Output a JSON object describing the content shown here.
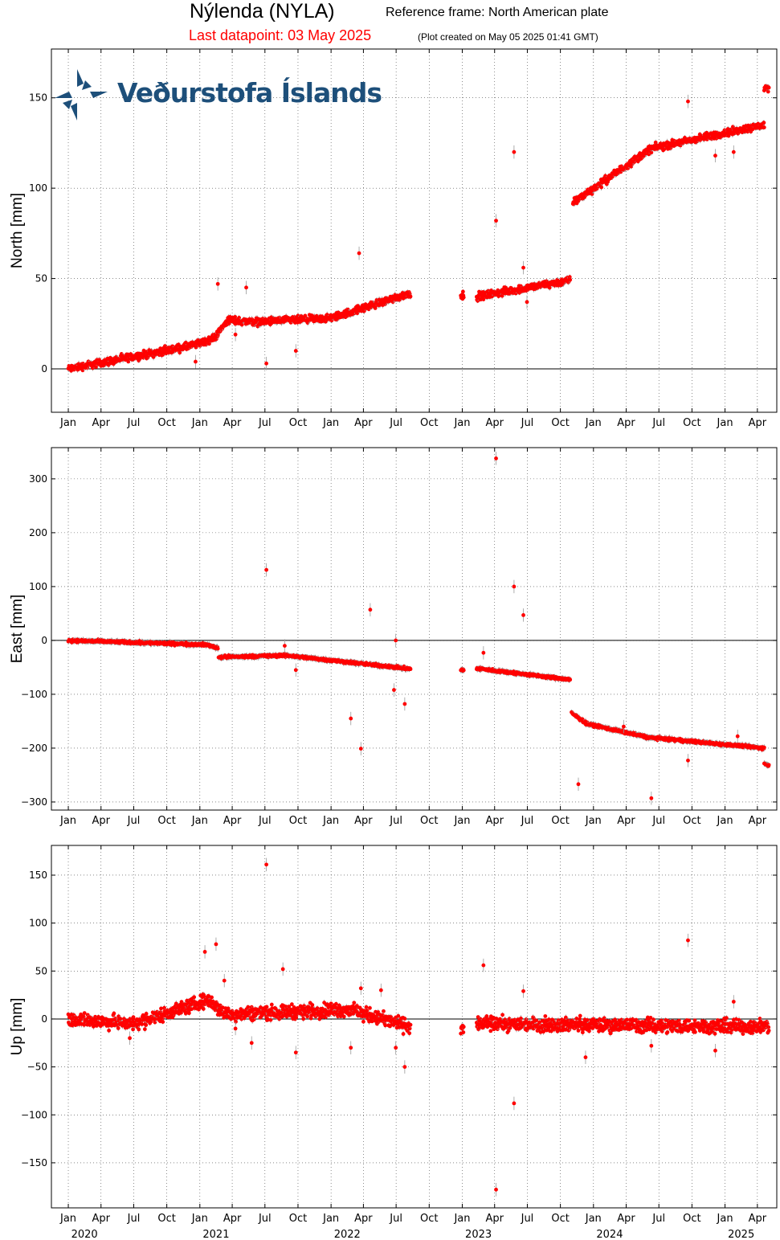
{
  "header": {
    "station": "Nýlenda (NYLA)",
    "reference_frame": "Reference frame: North American plate",
    "last_datapoint": "Last datapoint: 03 May 2025",
    "plot_created": "(Plot created on May 05 2025 01:41 GMT)"
  },
  "logo": {
    "text": "Veðurstofa Íslands"
  },
  "colors": {
    "data": "#ff0000",
    "error_bar": "#999999",
    "zero_line": "#000000",
    "grid": "#444444"
  },
  "chart_data": [
    {
      "type": "scatter",
      "ylabel": "North [mm]",
      "ylim": [
        -24,
        177
      ],
      "yticks": [
        0,
        50,
        100,
        150
      ],
      "grid": true,
      "zero_line": true,
      "segments": [
        {
          "x": [
            "2020-01-01",
            "2020-12-15"
          ],
          "y": [
            0,
            13
          ]
        },
        {
          "x": [
            "2020-12-15",
            "2021-02-10"
          ],
          "y": [
            13,
            17
          ]
        },
        {
          "x": [
            "2021-02-10",
            "2021-03-20"
          ],
          "y": [
            17,
            27
          ]
        },
        {
          "x": [
            "2021-03-20",
            "2021-06-10"
          ],
          "y": [
            27,
            26
          ]
        },
        {
          "x": [
            "2021-06-10",
            "2021-12-31"
          ],
          "y": [
            26,
            28
          ]
        },
        {
          "x": [
            "2021-12-31",
            "2022-08-10"
          ],
          "y": [
            28,
            42
          ]
        },
        {
          "x": [
            "2022-12-28",
            "2023-01-05"
          ],
          "y": [
            40,
            41
          ]
        },
        {
          "x": [
            "2023-02-10",
            "2023-10-28"
          ],
          "y": [
            40,
            49
          ]
        },
        {
          "x": [
            "2023-11-05",
            "2024-06-10"
          ],
          "y": [
            92,
            122
          ]
        },
        {
          "x": [
            "2024-06-10",
            "2025-04-20"
          ],
          "y": [
            122,
            135
          ]
        },
        {
          "x": [
            "2025-04-20",
            "2025-05-03"
          ],
          "y": [
            154,
            155
          ]
        }
      ],
      "outliers": [
        {
          "x": "2020-12-20",
          "y": 4
        },
        {
          "x": "2021-02-20",
          "y": 47
        },
        {
          "x": "2021-04-10",
          "y": 19
        },
        {
          "x": "2021-05-10",
          "y": 45
        },
        {
          "x": "2021-07-05",
          "y": 3
        },
        {
          "x": "2021-09-25",
          "y": 10
        },
        {
          "x": "2022-03-20",
          "y": 64
        },
        {
          "x": "2023-04-05",
          "y": 82
        },
        {
          "x": "2023-05-25",
          "y": 120
        },
        {
          "x": "2023-06-20",
          "y": 56
        },
        {
          "x": "2023-06-30",
          "y": 37
        },
        {
          "x": "2024-09-20",
          "y": 148
        },
        {
          "x": "2024-12-05",
          "y": 118
        },
        {
          "x": "2025-01-25",
          "y": 120
        }
      ]
    },
    {
      "type": "scatter",
      "ylabel": "East [mm]",
      "ylim": [
        -315,
        358
      ],
      "yticks": [
        -300,
        -200,
        -100,
        0,
        100,
        200,
        300
      ],
      "grid": true,
      "zero_line": true,
      "segments": [
        {
          "x": [
            "2020-01-01",
            "2021-01-20"
          ],
          "y": [
            0,
            -8
          ]
        },
        {
          "x": [
            "2021-01-20",
            "2021-02-20"
          ],
          "y": [
            -8,
            -14
          ]
        },
        {
          "x": [
            "2021-02-22",
            "2021-09-01"
          ],
          "y": [
            -31,
            -28
          ]
        },
        {
          "x": [
            "2021-09-01",
            "2022-08-10"
          ],
          "y": [
            -28,
            -53
          ]
        },
        {
          "x": [
            "2022-12-28",
            "2023-01-05"
          ],
          "y": [
            -55,
            -55
          ]
        },
        {
          "x": [
            "2023-02-10",
            "2023-10-28"
          ],
          "y": [
            -52,
            -73
          ]
        },
        {
          "x": [
            "2023-11-01",
            "2023-12-15"
          ],
          "y": [
            -135,
            -155
          ]
        },
        {
          "x": [
            "2023-12-15",
            "2024-06-01"
          ],
          "y": [
            -155,
            -180
          ]
        },
        {
          "x": [
            "2024-06-01",
            "2025-04-20"
          ],
          "y": [
            -180,
            -200
          ]
        },
        {
          "x": [
            "2025-04-20",
            "2025-05-03"
          ],
          "y": [
            -228,
            -232
          ]
        }
      ],
      "outliers": [
        {
          "x": "2021-07-05",
          "y": 131
        },
        {
          "x": "2021-08-25",
          "y": -10
        },
        {
          "x": "2021-09-25",
          "y": -55
        },
        {
          "x": "2022-02-25",
          "y": -145
        },
        {
          "x": "2022-03-25",
          "y": -201
        },
        {
          "x": "2022-04-20",
          "y": 57
        },
        {
          "x": "2022-06-30",
          "y": 0
        },
        {
          "x": "2022-06-25",
          "y": -92
        },
        {
          "x": "2022-07-25",
          "y": -118
        },
        {
          "x": "2023-03-01",
          "y": -23
        },
        {
          "x": "2023-04-05",
          "y": 338
        },
        {
          "x": "2023-05-25",
          "y": 100
        },
        {
          "x": "2023-06-20",
          "y": 47
        },
        {
          "x": "2023-11-20",
          "y": -267
        },
        {
          "x": "2024-06-10",
          "y": -293
        },
        {
          "x": "2024-03-25",
          "y": -160
        },
        {
          "x": "2024-09-20",
          "y": -223
        },
        {
          "x": "2025-02-05",
          "y": -178
        }
      ]
    },
    {
      "type": "scatter",
      "ylabel": "Up [mm]",
      "ylim": [
        -197,
        181
      ],
      "yticks": [
        -150,
        -100,
        -50,
        0,
        50,
        100,
        150
      ],
      "grid": true,
      "zero_line": true,
      "segments": [
        {
          "x": [
            "2020-01-01",
            "2020-06-30"
          ],
          "y": [
            0,
            -5
          ]
        },
        {
          "x": [
            "2020-06-30",
            "2021-01-25"
          ],
          "y": [
            -5,
            20
          ]
        },
        {
          "x": [
            "2021-01-25",
            "2021-03-10"
          ],
          "y": [
            20,
            5
          ]
        },
        {
          "x": [
            "2021-03-10",
            "2022-02-15"
          ],
          "y": [
            5,
            10
          ]
        },
        {
          "x": [
            "2022-02-15",
            "2022-08-10"
          ],
          "y": [
            10,
            -8
          ]
        },
        {
          "x": [
            "2022-12-28",
            "2023-01-05"
          ],
          "y": [
            -12,
            -10
          ]
        },
        {
          "x": [
            "2023-02-10",
            "2025-05-03"
          ],
          "y": [
            -5,
            -8
          ]
        }
      ],
      "outliers": [
        {
          "x": "2020-06-20",
          "y": -20
        },
        {
          "x": "2021-01-15",
          "y": 70
        },
        {
          "x": "2021-02-15",
          "y": 78
        },
        {
          "x": "2021-03-10",
          "y": 40
        },
        {
          "x": "2021-04-10",
          "y": -10
        },
        {
          "x": "2021-05-25",
          "y": -25
        },
        {
          "x": "2021-07-05",
          "y": 161
        },
        {
          "x": "2021-08-20",
          "y": 52
        },
        {
          "x": "2021-09-25",
          "y": -35
        },
        {
          "x": "2022-02-25",
          "y": -30
        },
        {
          "x": "2022-03-25",
          "y": 32
        },
        {
          "x": "2022-05-20",
          "y": 30
        },
        {
          "x": "2022-06-30",
          "y": -30
        },
        {
          "x": "2022-07-25",
          "y": -50
        },
        {
          "x": "2023-03-01",
          "y": 56
        },
        {
          "x": "2023-04-05",
          "y": -178
        },
        {
          "x": "2023-05-25",
          "y": -88
        },
        {
          "x": "2023-06-20",
          "y": 29
        },
        {
          "x": "2023-12-10",
          "y": -40
        },
        {
          "x": "2024-06-10",
          "y": -28
        },
        {
          "x": "2024-09-20",
          "y": 82
        },
        {
          "x": "2024-12-05",
          "y": -33
        },
        {
          "x": "2025-01-25",
          "y": 18
        }
      ]
    }
  ],
  "x_axis": {
    "xlim": [
      "2019-11-15",
      "2025-05-25"
    ],
    "month_ticks": [
      {
        "date": "2020-01-01",
        "label": "Jan"
      },
      {
        "date": "2020-04-01",
        "label": "Apr"
      },
      {
        "date": "2020-07-01",
        "label": "Jul"
      },
      {
        "date": "2020-10-01",
        "label": "Oct"
      },
      {
        "date": "2021-01-01",
        "label": "Jan"
      },
      {
        "date": "2021-04-01",
        "label": "Apr"
      },
      {
        "date": "2021-07-01",
        "label": "Jul"
      },
      {
        "date": "2021-10-01",
        "label": "Oct"
      },
      {
        "date": "2022-01-01",
        "label": "Jan"
      },
      {
        "date": "2022-04-01",
        "label": "Apr"
      },
      {
        "date": "2022-07-01",
        "label": "Jul"
      },
      {
        "date": "2022-10-01",
        "label": "Oct"
      },
      {
        "date": "2023-01-01",
        "label": "Jan"
      },
      {
        "date": "2023-04-01",
        "label": "Apr"
      },
      {
        "date": "2023-07-01",
        "label": "Jul"
      },
      {
        "date": "2023-10-01",
        "label": "Oct"
      },
      {
        "date": "2024-01-01",
        "label": "Jan"
      },
      {
        "date": "2024-04-01",
        "label": "Apr"
      },
      {
        "date": "2024-07-01",
        "label": "Jul"
      },
      {
        "date": "2024-10-01",
        "label": "Oct"
      },
      {
        "date": "2025-01-01",
        "label": "Jan"
      },
      {
        "date": "2025-04-01",
        "label": "Apr"
      }
    ],
    "year_labels": [
      {
        "date": "2020-02-15",
        "label": "2020"
      },
      {
        "date": "2021-02-15",
        "label": "2021"
      },
      {
        "date": "2022-02-15",
        "label": "2022"
      },
      {
        "date": "2023-02-15",
        "label": "2023"
      },
      {
        "date": "2024-02-15",
        "label": "2024"
      },
      {
        "date": "2025-02-15",
        "label": "2025"
      }
    ]
  }
}
